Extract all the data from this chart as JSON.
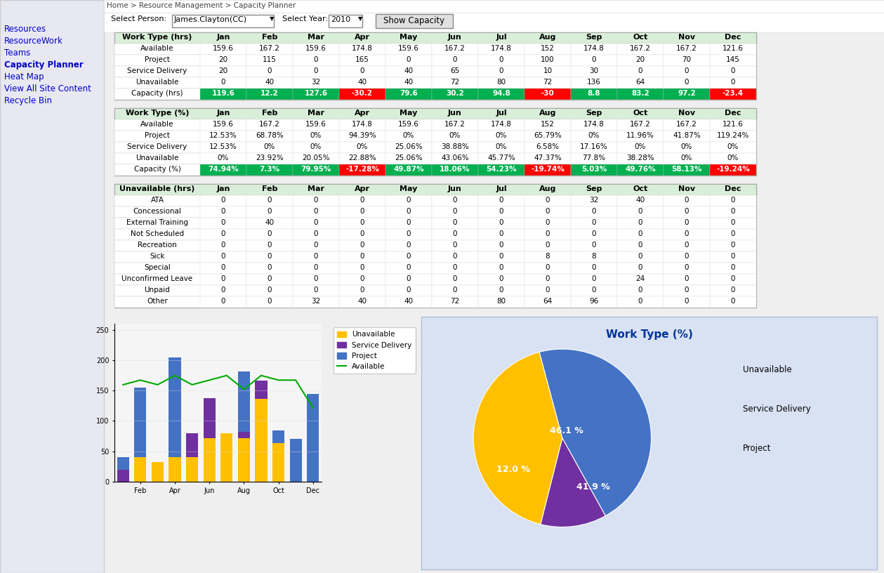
{
  "breadcrumb": "Home > Resource Management > Capacity Planner",
  "person": "James.Clayton(CC)",
  "year": "2010",
  "months": [
    "Jan",
    "Feb",
    "Mar",
    "Apr",
    "May",
    "Jun",
    "Jul",
    "Aug",
    "Sep",
    "Oct",
    "Nov",
    "Dec"
  ],
  "table1_title": "Work Type (hrs)",
  "table1_rows": {
    "Available": [
      159.6,
      167.2,
      159.6,
      174.8,
      159.6,
      167.2,
      174.8,
      152,
      174.8,
      167.2,
      167.2,
      121.6
    ],
    "Project": [
      20,
      115,
      0,
      165,
      0,
      0,
      0,
      100,
      0,
      20,
      70,
      145
    ],
    "Service Delivery": [
      20,
      0,
      0,
      0,
      40,
      65,
      0,
      10,
      30,
      0,
      0,
      0
    ],
    "Unavailable": [
      0,
      40,
      32,
      40,
      40,
      72,
      80,
      72,
      136,
      64,
      0,
      0
    ],
    "Capacity (hrs)": [
      119.6,
      12.2,
      127.6,
      -30.2,
      79.6,
      30.2,
      94.8,
      -30,
      8.8,
      83.2,
      97.2,
      -23.4
    ]
  },
  "table2_title": "Work Type (%)",
  "table2_rows": {
    "Available": [
      "159.6",
      "167.2",
      "159.6",
      "174.8",
      "159.6",
      "167.2",
      "174.8",
      "152",
      "174.8",
      "167.2",
      "167.2",
      "121.6"
    ],
    "Project": [
      "12.53%",
      "68.78%",
      "0%",
      "94.39%",
      "0%",
      "0%",
      "0%",
      "65.79%",
      "0%",
      "11.96%",
      "41.87%",
      "119.24%"
    ],
    "Service Delivery": [
      "12.53%",
      "0%",
      "0%",
      "0%",
      "25.06%",
      "38.88%",
      "0%",
      "6.58%",
      "17.16%",
      "0%",
      "0%",
      "0%"
    ],
    "Unavailable": [
      "0%",
      "23.92%",
      "20.05%",
      "22.88%",
      "25.06%",
      "43.06%",
      "45.77%",
      "47.37%",
      "77.8%",
      "38.28%",
      "0%",
      "0%"
    ],
    "Capacity (%)": [
      "74.94%",
      "7.3%",
      "79.95%",
      "-17.28%",
      "49.87%",
      "18.06%",
      "54.23%",
      "-19.74%",
      "5.03%",
      "49.76%",
      "58.13%",
      "-19.24%"
    ]
  },
  "table3_title": "Unavailable (hrs)",
  "table3_rows": {
    "ATA": [
      0,
      0,
      0,
      0,
      0,
      0,
      0,
      0,
      32,
      40,
      0,
      0
    ],
    "Concessional": [
      0,
      0,
      0,
      0,
      0,
      0,
      0,
      0,
      0,
      0,
      0,
      0
    ],
    "External Training": [
      0,
      40,
      0,
      0,
      0,
      0,
      0,
      0,
      0,
      0,
      0,
      0
    ],
    "Not Scheduled": [
      0,
      0,
      0,
      0,
      0,
      0,
      0,
      0,
      0,
      0,
      0,
      0
    ],
    "Recreation": [
      0,
      0,
      0,
      0,
      0,
      0,
      0,
      0,
      0,
      0,
      0,
      0
    ],
    "Sick": [
      0,
      0,
      0,
      0,
      0,
      0,
      0,
      8,
      8,
      0,
      0,
      0
    ],
    "Special": [
      0,
      0,
      0,
      0,
      0,
      0,
      0,
      0,
      0,
      0,
      0,
      0
    ],
    "Unconfirmed Leave": [
      0,
      0,
      0,
      0,
      0,
      0,
      0,
      0,
      0,
      24,
      0,
      0
    ],
    "Unpaid": [
      0,
      0,
      0,
      0,
      0,
      0,
      0,
      0,
      0,
      0,
      0,
      0
    ],
    "Other": [
      0,
      0,
      32,
      40,
      40,
      72,
      80,
      64,
      96,
      0,
      0,
      0
    ]
  },
  "bar_available": [
    159.6,
    167.2,
    159.6,
    174.8,
    159.6,
    167.2,
    174.8,
    152,
    174.8,
    167.2,
    167.2,
    121.6
  ],
  "bar_project": [
    20,
    115,
    0,
    165,
    0,
    0,
    0,
    100,
    0,
    20,
    70,
    145
  ],
  "bar_service": [
    20,
    0,
    0,
    0,
    40,
    65,
    0,
    10,
    30,
    0,
    0,
    0
  ],
  "bar_unavail": [
    0,
    40,
    32,
    40,
    40,
    72,
    80,
    72,
    136,
    64,
    0,
    0
  ],
  "pie_labels": [
    "46.1 %",
    "12.0 %",
    "41.9 %"
  ],
  "pie_values": [
    46.1,
    12.0,
    41.9
  ],
  "pie_colors": [
    "#4472C4",
    "#7030A0",
    "#FFC000"
  ],
  "pie_legend": [
    "Unavailable",
    "Service Delivery",
    "Project"
  ],
  "pie_legend_colors": [
    "#FFC000",
    "#7030A0",
    "#4472C4"
  ],
  "colors": {
    "capacity_green": "#00B050",
    "capacity_red": "#FF0000",
    "bar_unavail": "#FFC000",
    "bar_service": "#7030A0",
    "bar_project": "#4472C4",
    "bar_available_line": "#00AA00",
    "chart_bg": "#F0F0F0",
    "pie_chart_bg": "#D9E2F3",
    "table_header_bg": "#D8EED8",
    "nav_bg": "#E8E8F2",
    "top_bar_bg": "#EFEFEF"
  },
  "nav_items": [
    "Resources",
    "ResourceWork",
    "Teams",
    "Capacity Planner",
    "Heat Map",
    "View All Site Content",
    "Recycle Bin"
  ]
}
